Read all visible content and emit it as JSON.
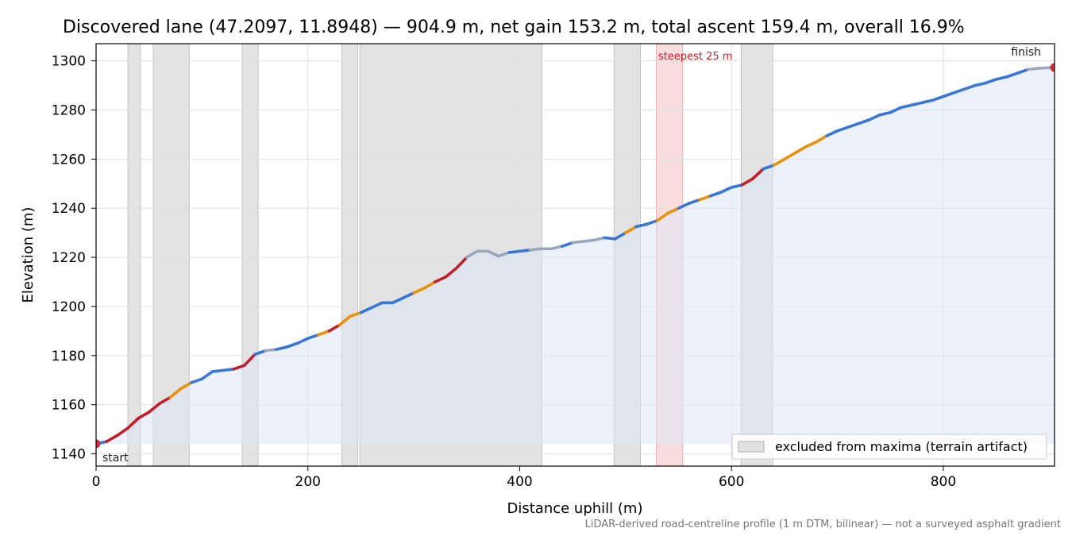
{
  "chart_data": {
    "type": "area",
    "title": "Discovered lane (47.2097, 11.8948) — 904.9 m, net gain 153.2 m, total ascent 159.4 m, overall 16.9%",
    "xlabel": "Distance uphill (m)",
    "ylabel": "Elevation (m)",
    "xlim": [
      0,
      905
    ],
    "ylim": [
      1135,
      1307
    ],
    "x_ticks": [
      0,
      200,
      400,
      600,
      800
    ],
    "y_ticks": [
      1140,
      1160,
      1180,
      1200,
      1220,
      1240,
      1260,
      1280,
      1300
    ],
    "grid": true,
    "legend": {
      "placement": "lower-right",
      "label": "excluded from maxima (terrain artifact)"
    },
    "fill_baseline": 1144,
    "excluded_ranges": [
      [
        30,
        42
      ],
      [
        54,
        88
      ],
      [
        138,
        153
      ],
      [
        232,
        247
      ],
      [
        249,
        421
      ],
      [
        489,
        514
      ],
      [
        609,
        639
      ]
    ],
    "steepest": {
      "range": [
        529,
        554
      ],
      "label": "steepest 25 m"
    },
    "markers": [
      {
        "x": 0,
        "y": 1144.1,
        "label": "start"
      },
      {
        "x": 904.9,
        "y": 1297.3,
        "label": "finish"
      }
    ],
    "colors": {
      "gentle": "#3a75d8",
      "moderate": "#e8920c",
      "steep": "#c21f2a",
      "flat": "#9aa8be",
      "fill": "#dfe7f6",
      "excluded": "#d0d0d0",
      "steepest_band": "#f4c6c9",
      "marker": "#d03038"
    },
    "series": [
      {
        "x": [
          0,
          10,
          20,
          30,
          40,
          50,
          60,
          70,
          80,
          90,
          100,
          110,
          120,
          130,
          140,
          150,
          160,
          170,
          180,
          190,
          200,
          210,
          220,
          230,
          240,
          250,
          260,
          270,
          280,
          290,
          300,
          310,
          320,
          330,
          340,
          350,
          360,
          370,
          380,
          390,
          400,
          410,
          420,
          430,
          440,
          450,
          460,
          470,
          480,
          490,
          500,
          510,
          520,
          530,
          540,
          550,
          560,
          570,
          580,
          590,
          600,
          610,
          620,
          630,
          640,
          650,
          660,
          670,
          680,
          690,
          700,
          710,
          720,
          730,
          740,
          750,
          760,
          770,
          780,
          790,
          800,
          810,
          820,
          830,
          840,
          850,
          860,
          870,
          880,
          890,
          904.9
        ],
        "y": [
          1144.1,
          1145,
          1147.5,
          1150.5,
          1154.5,
          1157,
          1160.5,
          1163,
          1166.5,
          1169,
          1170.5,
          1173.5,
          1174,
          1174.5,
          1176,
          1180.5,
          1182,
          1182.5,
          1183.5,
          1185,
          1187,
          1188.5,
          1190,
          1192.5,
          1196,
          1197.5,
          1199.5,
          1201.5,
          1201.5,
          1203.5,
          1205.5,
          1207.5,
          1210,
          1212,
          1215.5,
          1220,
          1222.5,
          1222.5,
          1220.5,
          1222,
          1222.5,
          1223,
          1223.5,
          1223.5,
          1224.5,
          1226,
          1226.5,
          1227,
          1228,
          1227.5,
          1230,
          1232.5,
          1233.5,
          1235,
          1238,
          1240,
          1242,
          1243.5,
          1245,
          1246.5,
          1248.5,
          1249.5,
          1252,
          1256,
          1257.5,
          1260,
          1262.5,
          1265,
          1267,
          1269.5,
          1271.5,
          1273,
          1274.5,
          1276,
          1278,
          1279,
          1281,
          1282,
          1283,
          1284,
          1285.5,
          1287,
          1288.5,
          1290,
          1291,
          1292.5,
          1293.5,
          1295,
          1296.5,
          1297,
          1297.3
        ],
        "grade_class": [
          "gentle",
          "steep",
          "steep",
          "steep",
          "steep",
          "steep",
          "steep",
          "moderate",
          "moderate",
          "gentle",
          "gentle",
          "gentle",
          "gentle",
          "steep",
          "steep",
          "gentle",
          "flat",
          "gentle",
          "gentle",
          "gentle",
          "gentle",
          "moderate",
          "steep",
          "moderate",
          "moderate",
          "gentle",
          "gentle",
          "gentle",
          "gentle",
          "gentle",
          "moderate",
          "moderate",
          "steep",
          "steep",
          "steep",
          "flat",
          "flat",
          "flat",
          "flat",
          "gentle",
          "gentle",
          "flat",
          "flat",
          "flat",
          "gentle",
          "flat",
          "flat",
          "flat",
          "gentle",
          "gentle",
          "moderate",
          "gentle",
          "gentle",
          "moderate",
          "moderate",
          "gentle",
          "gentle",
          "moderate",
          "gentle",
          "gentle",
          "gentle",
          "steep",
          "steep",
          "gentle",
          "moderate",
          "moderate",
          "moderate",
          "moderate",
          "moderate",
          "gentle",
          "gentle",
          "gentle",
          "gentle",
          "gentle",
          "gentle",
          "gentle",
          "gentle",
          "gentle",
          "gentle",
          "gentle",
          "gentle",
          "gentle",
          "gentle",
          "gentle",
          "gentle",
          "gentle",
          "gentle",
          "gentle",
          "flat",
          "flat"
        ]
      }
    ],
    "footnote": "LiDAR-derived road-centreline profile (1 m DTM, bilinear) — not a surveyed asphalt gradient"
  }
}
